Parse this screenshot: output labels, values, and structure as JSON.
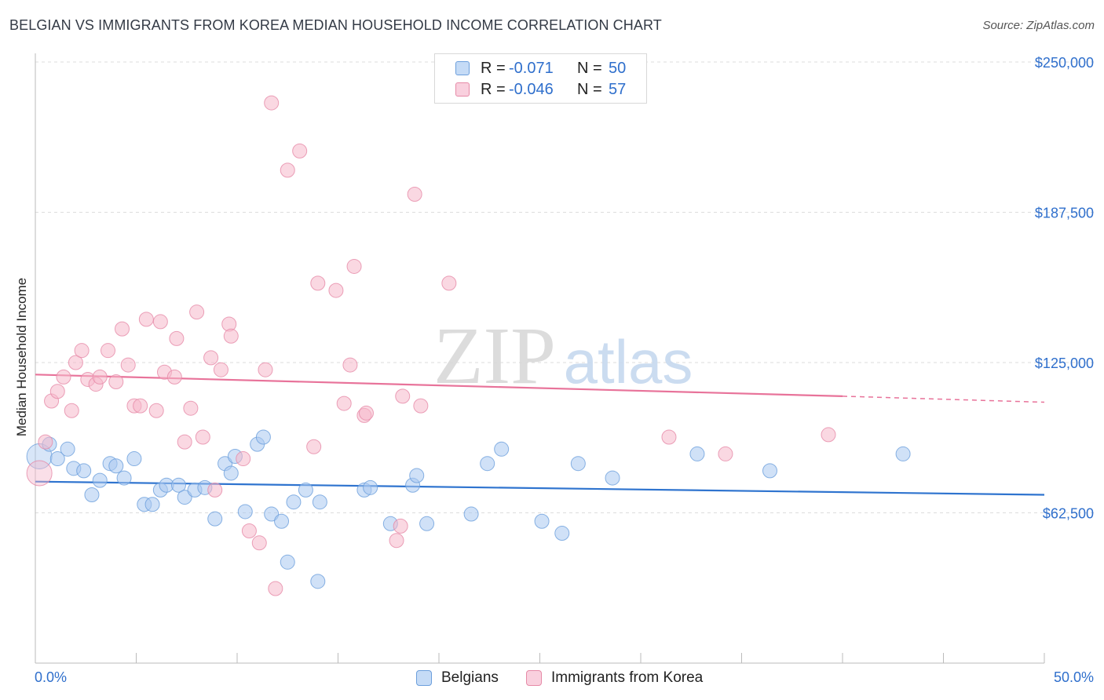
{
  "title": "BELGIAN VS IMMIGRANTS FROM KOREA MEDIAN HOUSEHOLD INCOME CORRELATION CHART",
  "source": "Source: ZipAtlas.com",
  "watermark": {
    "zip": "ZIP",
    "atlas": "atlas"
  },
  "legend": {
    "rows": [
      {
        "r_label": "R =",
        "r_value": "-0.071",
        "n_label": "N =",
        "n_value": "50",
        "color": "#a9c8f0"
      },
      {
        "r_label": "R =",
        "r_value": "-0.046",
        "n_label": "N =",
        "n_value": "57",
        "color": "#f5b8cb"
      }
    ]
  },
  "bottom_legend": {
    "items": [
      {
        "label": "Belgians",
        "color": "#a9c8f0"
      },
      {
        "label": "Immigrants from Korea",
        "color": "#f5b8cb"
      }
    ]
  },
  "chart_data": {
    "type": "scatter",
    "title": "BELGIAN VS IMMIGRANTS FROM KOREA MEDIAN HOUSEHOLD INCOME CORRELATION CHART",
    "xlabel": "",
    "ylabel": "Median Household Income",
    "xlim": [
      0,
      50
    ],
    "ylim": [
      0,
      250000
    ],
    "x_tick_labels": [
      "0.0%",
      "50.0%"
    ],
    "y_ticks": [
      62500,
      125000,
      187500,
      250000
    ],
    "y_tick_labels": [
      "$62,500",
      "$125,000",
      "$187,500",
      "$250,000"
    ],
    "grid": "horizontal dashed",
    "legend_position": "top-center",
    "series": [
      {
        "name": "Belgians",
        "color": "#a9c8f0",
        "stroke": "#6c9fdc",
        "trend": {
          "x": [
            0,
            50
          ],
          "y": [
            75500,
            70000
          ],
          "color": "#2f74cf"
        },
        "points": [
          [
            0.2,
            86000
          ],
          [
            0.7,
            91000
          ],
          [
            1.1,
            85000
          ],
          [
            1.6,
            89000
          ],
          [
            1.9,
            81000
          ],
          [
            2.4,
            80000
          ],
          [
            2.8,
            70000
          ],
          [
            3.2,
            76000
          ],
          [
            3.7,
            83000
          ],
          [
            4.0,
            82000
          ],
          [
            4.4,
            77000
          ],
          [
            4.9,
            85000
          ],
          [
            5.4,
            66000
          ],
          [
            5.8,
            66000
          ],
          [
            6.2,
            72000
          ],
          [
            6.5,
            74000
          ],
          [
            7.1,
            74000
          ],
          [
            7.4,
            69000
          ],
          [
            7.9,
            72000
          ],
          [
            8.4,
            73000
          ],
          [
            8.9,
            60000
          ],
          [
            9.4,
            83000
          ],
          [
            9.7,
            79000
          ],
          [
            9.9,
            86000
          ],
          [
            10.4,
            63000
          ],
          [
            11.0,
            91000
          ],
          [
            11.3,
            94000
          ],
          [
            11.7,
            62000
          ],
          [
            12.2,
            59000
          ],
          [
            12.5,
            42000
          ],
          [
            12.8,
            67000
          ],
          [
            13.4,
            72000
          ],
          [
            14.0,
            34000
          ],
          [
            14.1,
            67000
          ],
          [
            16.3,
            72000
          ],
          [
            16.6,
            73000
          ],
          [
            17.6,
            58000
          ],
          [
            18.7,
            74000
          ],
          [
            18.9,
            78000
          ],
          [
            19.4,
            58000
          ],
          [
            21.6,
            62000
          ],
          [
            22.4,
            83000
          ],
          [
            23.1,
            89000
          ],
          [
            25.1,
            59000
          ],
          [
            26.1,
            54000
          ],
          [
            26.9,
            83000
          ],
          [
            28.6,
            77000
          ],
          [
            32.8,
            87000
          ],
          [
            36.4,
            80000
          ],
          [
            43.0,
            87000
          ]
        ]
      },
      {
        "name": "Immigrants from Korea",
        "color": "#f5b8cb",
        "stroke": "#e68aa7",
        "trend": {
          "x": [
            0,
            40
          ],
          "y": [
            120000,
            111000
          ],
          "color": "#e8739a",
          "dashed_to": [
            50,
            108500
          ]
        },
        "points": [
          [
            0.2,
            79000
          ],
          [
            0.5,
            92000
          ],
          [
            0.8,
            109000
          ],
          [
            1.1,
            113000
          ],
          [
            1.4,
            119000
          ],
          [
            1.8,
            105000
          ],
          [
            2.0,
            125000
          ],
          [
            2.3,
            130000
          ],
          [
            2.6,
            118000
          ],
          [
            3.0,
            116000
          ],
          [
            3.2,
            119000
          ],
          [
            3.6,
            130000
          ],
          [
            4.0,
            117000
          ],
          [
            4.3,
            139000
          ],
          [
            4.6,
            124000
          ],
          [
            4.9,
            107000
          ],
          [
            5.2,
            107000
          ],
          [
            5.5,
            143000
          ],
          [
            6.0,
            105000
          ],
          [
            6.2,
            142000
          ],
          [
            6.4,
            121000
          ],
          [
            6.9,
            119000
          ],
          [
            7.0,
            135000
          ],
          [
            7.4,
            92000
          ],
          [
            7.7,
            106000
          ],
          [
            8.0,
            146000
          ],
          [
            8.3,
            94000
          ],
          [
            8.7,
            127000
          ],
          [
            8.9,
            72000
          ],
          [
            9.2,
            122000
          ],
          [
            9.6,
            141000
          ],
          [
            9.7,
            136000
          ],
          [
            10.3,
            85000
          ],
          [
            10.6,
            55000
          ],
          [
            11.1,
            50000
          ],
          [
            11.4,
            122000
          ],
          [
            11.7,
            233000
          ],
          [
            11.9,
            31000
          ],
          [
            12.5,
            205000
          ],
          [
            13.1,
            213000
          ],
          [
            13.8,
            90000
          ],
          [
            14.0,
            158000
          ],
          [
            14.9,
            155000
          ],
          [
            15.3,
            108000
          ],
          [
            15.6,
            124000
          ],
          [
            15.8,
            165000
          ],
          [
            16.3,
            103000
          ],
          [
            16.4,
            104000
          ],
          [
            17.9,
            51000
          ],
          [
            18.1,
            57000
          ],
          [
            18.2,
            111000
          ],
          [
            18.8,
            195000
          ],
          [
            19.1,
            107000
          ],
          [
            20.5,
            158000
          ],
          [
            31.4,
            94000
          ],
          [
            34.2,
            87000
          ],
          [
            39.3,
            95000
          ]
        ]
      }
    ]
  }
}
